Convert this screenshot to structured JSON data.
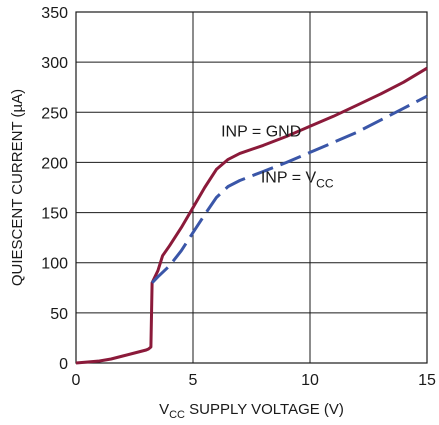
{
  "chart_data": {
    "type": "line",
    "xlabel": {
      "prefix": "V",
      "sub": "CC",
      "suffix": " SUPPLY VOLTAGE (V)"
    },
    "ylabel": "QUIESCENT CURRENT (µA)",
    "xlim": [
      0,
      15
    ],
    "ylim": [
      0,
      350
    ],
    "xticks": [
      0,
      5,
      10,
      15
    ],
    "yticks": [
      0,
      50,
      100,
      150,
      200,
      250,
      300,
      350
    ],
    "grid": true,
    "series": [
      {
        "name": "INP = GND",
        "color": "#8b1a3a",
        "style": "solid",
        "points": [
          [
            0,
            0
          ],
          [
            0.5,
            1
          ],
          [
            1,
            2
          ],
          [
            1.5,
            4
          ],
          [
            2,
            7
          ],
          [
            2.5,
            10
          ],
          [
            3,
            13
          ],
          [
            3.1,
            14
          ],
          [
            3.2,
            16
          ],
          [
            3.25,
            80
          ],
          [
            3.5,
            92
          ],
          [
            3.7,
            107
          ],
          [
            4,
            117
          ],
          [
            4.5,
            135
          ],
          [
            5,
            155
          ],
          [
            5.5,
            175
          ],
          [
            6,
            193
          ],
          [
            6.5,
            203
          ],
          [
            7,
            209
          ],
          [
            8,
            217
          ],
          [
            9,
            226
          ],
          [
            10,
            236
          ],
          [
            11,
            246
          ],
          [
            12,
            257
          ],
          [
            13,
            268
          ],
          [
            14,
            280
          ],
          [
            15,
            294
          ]
        ]
      },
      {
        "name": "INP = V",
        "name_sub": "CC",
        "color": "#3a56a8",
        "style": "dashed",
        "points": [
          [
            3.25,
            80
          ],
          [
            3.5,
            86
          ],
          [
            4,
            97
          ],
          [
            4.5,
            112
          ],
          [
            5,
            130
          ],
          [
            5.5,
            148
          ],
          [
            6,
            165
          ],
          [
            6.5,
            176
          ],
          [
            7,
            182
          ],
          [
            8,
            191
          ],
          [
            9,
            200
          ],
          [
            10,
            210
          ],
          [
            11,
            220
          ],
          [
            12,
            230
          ],
          [
            13,
            242
          ],
          [
            14,
            254
          ],
          [
            15,
            266
          ]
        ]
      }
    ],
    "annotations": [
      {
        "series": 0,
        "text": "INP = GND",
        "at": [
          6.2,
          226
        ]
      },
      {
        "series": 1,
        "text": "INP = V",
        "sub": "CC",
        "at": [
          7.9,
          180
        ]
      }
    ]
  }
}
